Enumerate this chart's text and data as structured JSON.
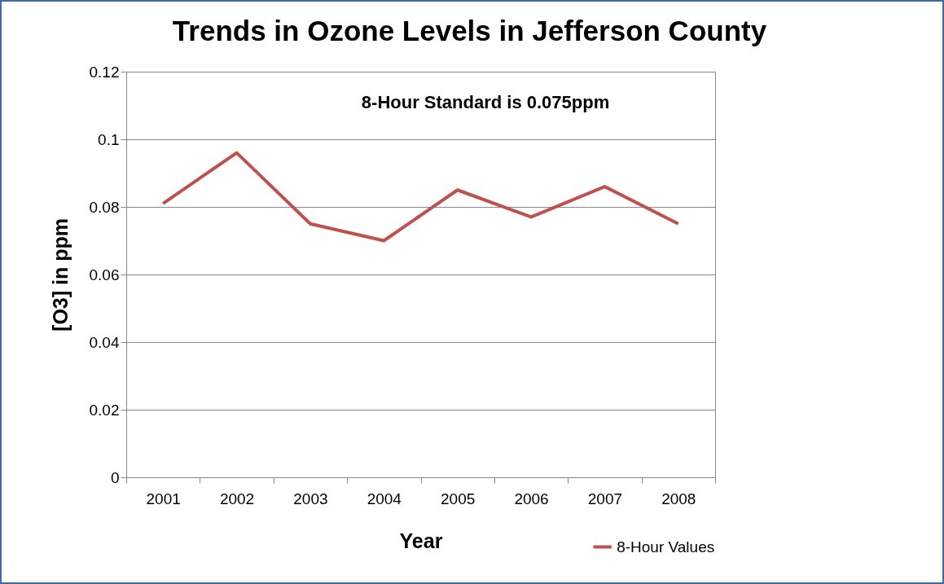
{
  "chart_data": {
    "type": "line",
    "title": "Trends in Ozone Levels in Jefferson County",
    "xlabel": "Year",
    "ylabel": "[O3] in ppm",
    "annotations": [
      "8-Hour Standard is 0.075ppm"
    ],
    "categories": [
      "2001",
      "2002",
      "2003",
      "2004",
      "2005",
      "2006",
      "2007",
      "2008"
    ],
    "series": [
      {
        "name": "8-Hour Values",
        "color": "#c0504d",
        "values": [
          0.081,
          0.096,
          0.075,
          0.07,
          0.085,
          0.077,
          0.086,
          0.075
        ]
      }
    ],
    "ylim": [
      0,
      0.12
    ],
    "yticks": [
      0,
      0.02,
      0.04,
      0.06,
      0.08,
      0.1,
      0.12
    ],
    "grid": "y",
    "legend": "bottom right",
    "marker": "none",
    "line_style": "solid"
  }
}
